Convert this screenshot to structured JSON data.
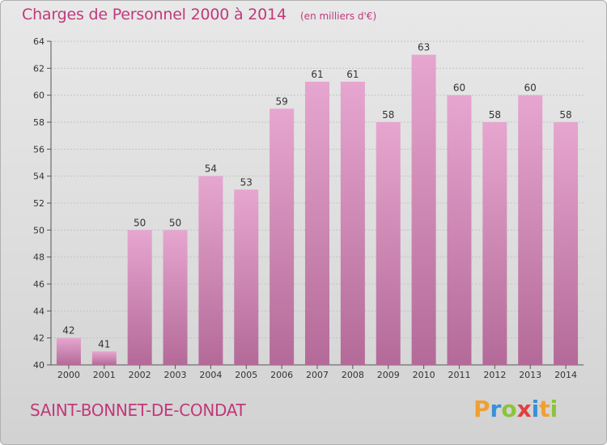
{
  "header": {
    "title": "Charges de Personnel 2000 à 2014",
    "subtitle": "(en milliers d'€)"
  },
  "footer": {
    "commune": "SAINT-BONNET-DE-CONDAT",
    "brand": {
      "text": "Proxiti",
      "colors": [
        "#f0a030",
        "#3a8fd8",
        "#8cc43a",
        "#e04040",
        "#3a8fd8",
        "#f0a030",
        "#8cc43a"
      ]
    }
  },
  "colors": {
    "accent": "#c0397a",
    "bar_top": "#e6a6cf",
    "bar_bottom": "#b46a98"
  },
  "chart_data": {
    "type": "bar",
    "title": "Charges de Personnel 2000 à 2014",
    "subtitle": "(en milliers d'€)",
    "categories": [
      "2000",
      "2001",
      "2002",
      "2003",
      "2004",
      "2005",
      "2006",
      "2007",
      "2008",
      "2009",
      "2010",
      "2011",
      "2012",
      "2013",
      "2014"
    ],
    "values": [
      42,
      41,
      50,
      50,
      54,
      53,
      59,
      61,
      61,
      58,
      63,
      60,
      58,
      60,
      58
    ],
    "ylim": [
      40,
      64
    ],
    "yticks": [
      40,
      42,
      44,
      46,
      48,
      50,
      52,
      54,
      56,
      58,
      60,
      62,
      64
    ],
    "grid": true,
    "data_labels": true
  }
}
